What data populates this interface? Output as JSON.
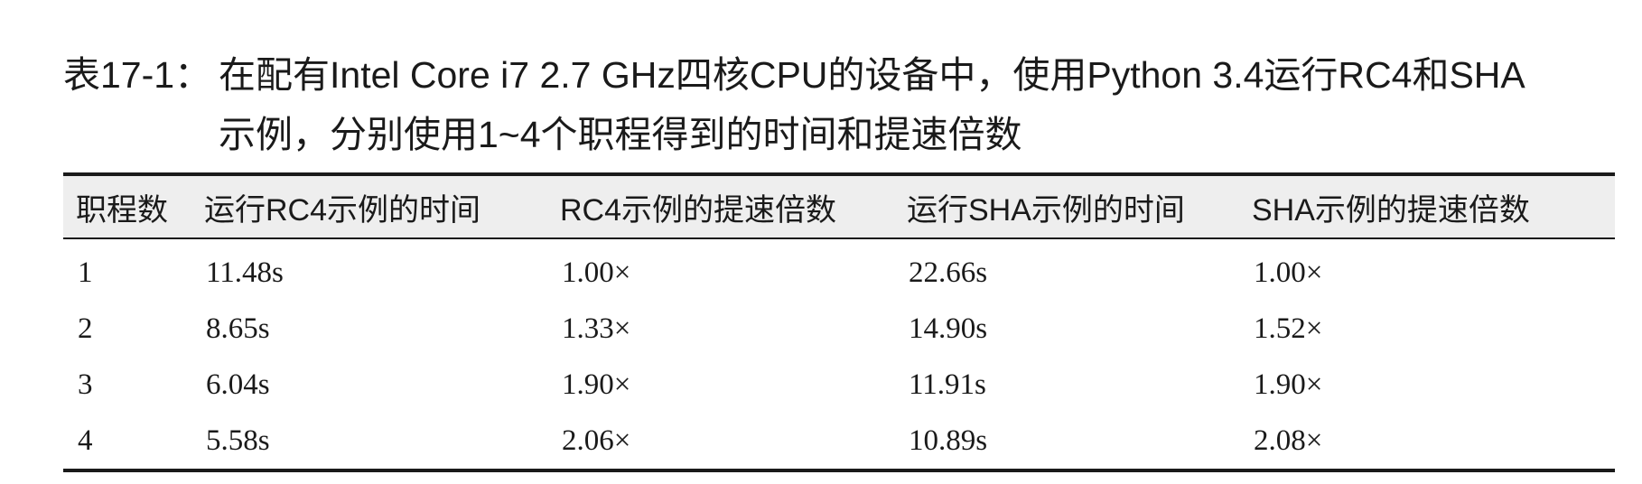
{
  "caption": {
    "label": "表17-1：",
    "line1": "在配有Intel Core i7 2.7 GHz四核CPU的设备中，使用Python 3.4运行RC4和SHA",
    "line2": "示例，分别使用1~4个职程得到的时间和提速倍数"
  },
  "table": {
    "headers": [
      "职程数",
      "运行RC4示例的时间",
      "RC4示例的提速倍数",
      "运行SHA示例的时间",
      "SHA示例的提速倍数"
    ],
    "rows": [
      [
        "1",
        "11.48s",
        "1.00×",
        "22.66s",
        "1.00×"
      ],
      [
        "2",
        "8.65s",
        "1.33×",
        "14.90s",
        "1.52×"
      ],
      [
        "3",
        "6.04s",
        "1.90×",
        "11.91s",
        "1.90×"
      ],
      [
        "4",
        "5.58s",
        "2.06×",
        "10.89s",
        "2.08×"
      ]
    ]
  }
}
